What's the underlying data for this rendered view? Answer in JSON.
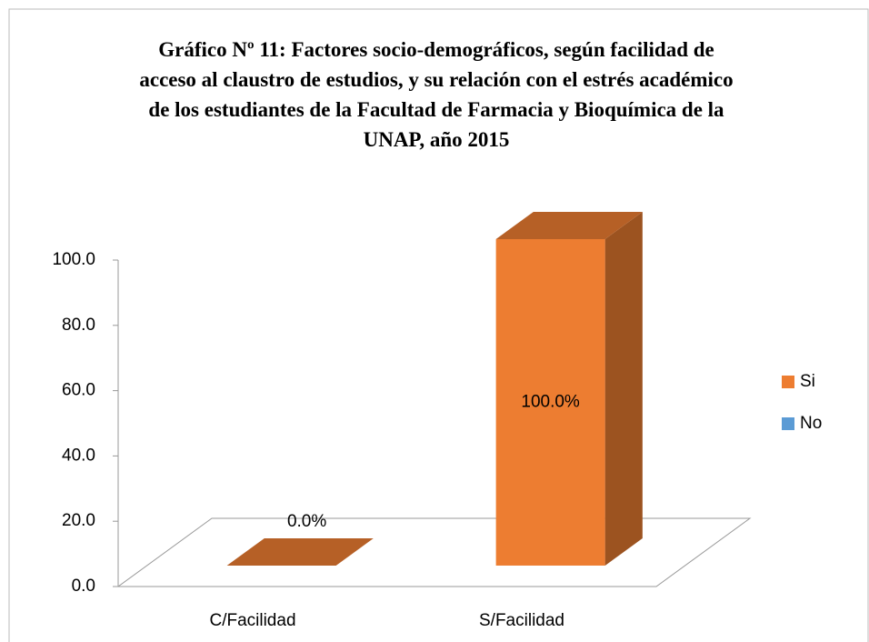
{
  "chart_data": {
    "type": "bar3d",
    "title": "Gráfico Nº 11: Factores socio-demográficos, según facilidad de acceso al claustro de estudios, y su relación con el estrés académico de los estudiantes de la Facultad de Farmacia y Bioquímica de la UNAP, año 2015",
    "categories": [
      "C/Facilidad",
      "S/Facilidad"
    ],
    "series": [
      {
        "name": "Si",
        "color": "#ED7D31",
        "values": [
          0,
          100
        ],
        "value_labels": [
          "0.0%",
          "100.0%"
        ]
      },
      {
        "name": "No",
        "color": "#5B9BD5",
        "values": [
          null,
          null
        ]
      }
    ],
    "ylim": [
      0,
      100
    ],
    "yticks": [
      {
        "value": 0,
        "label": "0.0"
      },
      {
        "value": 20,
        "label": "20.0"
      },
      {
        "value": 40,
        "label": "40.0"
      },
      {
        "value": 60,
        "label": "60.0"
      },
      {
        "value": 80,
        "label": "80.0"
      },
      {
        "value": 100,
        "label": "100.0"
      }
    ],
    "legend": "right"
  }
}
